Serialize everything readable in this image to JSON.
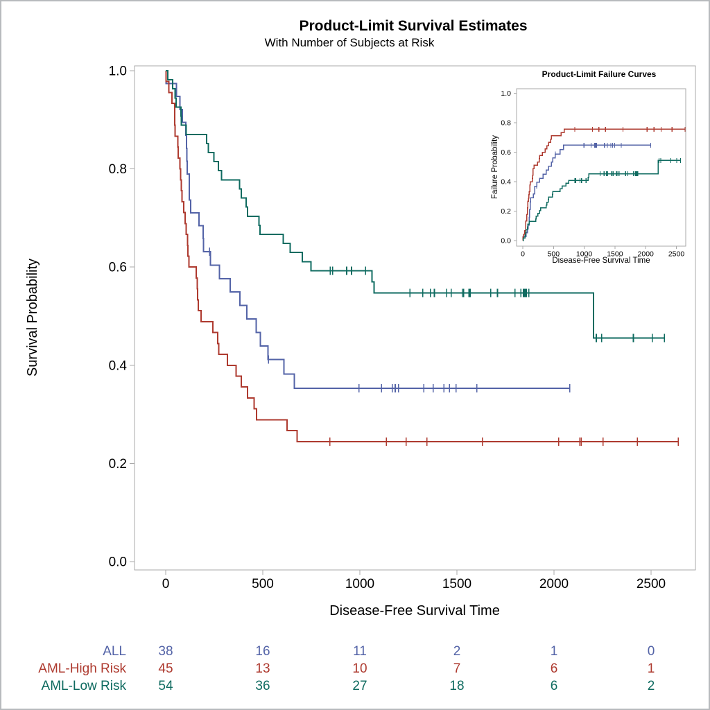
{
  "page": {
    "background": "#ffffff",
    "border_color": "#b7babd"
  },
  "chart_data": {
    "type": "line",
    "subtype": "kaplan_meier_step",
    "title": "Product-Limit Survival Estimates",
    "subtitle": "With Number of Subjects at Risk",
    "xlabel": "Disease-Free Survival Time",
    "ylabel": "Survival Probability",
    "xlim": [
      0,
      2700
    ],
    "ylim": [
      0.0,
      1.0
    ],
    "xticks": [
      0,
      500,
      1000,
      1500,
      2000,
      2500
    ],
    "yticks": [
      0.0,
      0.2,
      0.4,
      0.6,
      0.8,
      1.0
    ],
    "grid": "off",
    "legend_position": "none",
    "axis_color": "#a9a9a9",
    "text_color": "#000000",
    "series": [
      {
        "name": "ALL",
        "color": "#5363a7",
        "steps": [
          [
            0,
            1.0
          ],
          [
            1,
            0.9737
          ],
          [
            55,
            0.9474
          ],
          [
            74,
            0.9211
          ],
          [
            86,
            0.8947
          ],
          [
            104,
            0.8684
          ],
          [
            107,
            0.8421
          ],
          [
            109,
            0.8158
          ],
          [
            110,
            0.7895
          ],
          [
            122,
            0.7368
          ],
          [
            129,
            0.7105
          ],
          [
            172,
            0.6842
          ],
          [
            192,
            0.6579
          ],
          [
            194,
            0.6316
          ],
          [
            230,
            0.6041
          ],
          [
            276,
            0.5766
          ],
          [
            332,
            0.5492
          ],
          [
            383,
            0.5217
          ],
          [
            418,
            0.4942
          ],
          [
            466,
            0.4668
          ],
          [
            487,
            0.4393
          ],
          [
            526,
            0.4118
          ],
          [
            609,
            0.3824
          ],
          [
            662,
            0.3529
          ]
        ],
        "censor_times": [
          226,
          530,
          996,
          1111,
          1167,
          1182,
          1199,
          1330,
          1377,
          1433,
          1462,
          1496,
          1602,
          2081
        ],
        "end_time": 2081
      },
      {
        "name": "AML-High Risk",
        "color": "#ae3a2f",
        "steps": [
          [
            0,
            1.0
          ],
          [
            2,
            0.9778
          ],
          [
            16,
            0.9556
          ],
          [
            32,
            0.9333
          ],
          [
            47,
            0.8889
          ],
          [
            48,
            0.8667
          ],
          [
            63,
            0.8444
          ],
          [
            64,
            0.8222
          ],
          [
            74,
            0.8
          ],
          [
            76,
            0.7778
          ],
          [
            80,
            0.7556
          ],
          [
            84,
            0.7333
          ],
          [
            93,
            0.7111
          ],
          [
            100,
            0.6889
          ],
          [
            105,
            0.6667
          ],
          [
            113,
            0.6444
          ],
          [
            115,
            0.6222
          ],
          [
            120,
            0.6
          ],
          [
            157,
            0.5778
          ],
          [
            162,
            0.5556
          ],
          [
            164,
            0.5333
          ],
          [
            168,
            0.5111
          ],
          [
            183,
            0.4889
          ],
          [
            242,
            0.4667
          ],
          [
            268,
            0.4444
          ],
          [
            273,
            0.4222
          ],
          [
            318,
            0.4
          ],
          [
            363,
            0.3778
          ],
          [
            390,
            0.3556
          ],
          [
            422,
            0.3333
          ],
          [
            456,
            0.3111
          ],
          [
            467,
            0.2889
          ],
          [
            625,
            0.2667
          ],
          [
            677,
            0.2444
          ]
        ],
        "censor_times": [
          845,
          1136,
          1238,
          1345,
          1631,
          2024,
          2133,
          2140,
          2252,
          2430,
          2640
        ],
        "end_time": 2640
      },
      {
        "name": "AML-Low Risk",
        "color": "#0f6b60",
        "steps": [
          [
            0,
            1.0
          ],
          [
            10,
            0.9815
          ],
          [
            35,
            0.963
          ],
          [
            48,
            0.9444
          ],
          [
            53,
            0.9259
          ],
          [
            79,
            0.9074
          ],
          [
            80,
            0.8889
          ],
          [
            105,
            0.8704
          ],
          [
            211,
            0.8519
          ],
          [
            219,
            0.8333
          ],
          [
            248,
            0.8148
          ],
          [
            272,
            0.7963
          ],
          [
            288,
            0.7778
          ],
          [
            381,
            0.7593
          ],
          [
            390,
            0.7407
          ],
          [
            414,
            0.7222
          ],
          [
            421,
            0.7037
          ],
          [
            481,
            0.6852
          ],
          [
            486,
            0.6667
          ],
          [
            606,
            0.6481
          ],
          [
            641,
            0.6296
          ],
          [
            704,
            0.6111
          ],
          [
            748,
            0.5926
          ],
          [
            1063,
            0.5698
          ],
          [
            1074,
            0.547
          ],
          [
            2204,
            0.4558
          ]
        ],
        "censor_times": [
          847,
          848,
          860,
          932,
          957,
          1030,
          1258,
          1324,
          1363,
          1384,
          1447,
          1470,
          1527,
          1535,
          1562,
          1568,
          1674,
          1709,
          1799,
          1829,
          1843,
          1850,
          1857,
          1870,
          2218,
          2246,
          2409,
          2506,
          2569
        ],
        "end_time": 2569
      }
    ],
    "at_risk_table": {
      "times": [
        0,
        500,
        1000,
        1500,
        2000,
        2500
      ],
      "rows": [
        {
          "label": "ALL",
          "counts": [
            38,
            16,
            11,
            2,
            1,
            0
          ]
        },
        {
          "label": "AML-High Risk",
          "counts": [
            45,
            13,
            10,
            7,
            6,
            1
          ]
        },
        {
          "label": "AML-Low Risk",
          "counts": [
            54,
            36,
            27,
            18,
            6,
            2
          ]
        }
      ]
    },
    "inset": {
      "type": "line",
      "subtype": "failure_step_1_minus_survival",
      "title": "Product-Limit Failure Curves",
      "xlabel": "Disease-Free Survival Time",
      "ylabel": "Failure Probability",
      "xticks": [
        0,
        500,
        1000,
        1500,
        2000,
        2500
      ],
      "yticks": [
        0.0,
        0.2,
        0.4,
        0.6,
        0.8,
        1.0
      ],
      "plateau_values": {
        "ALL": 0.6471,
        "AML-High Risk": 0.7556,
        "AML-Low Risk": 0.5442
      }
    }
  }
}
